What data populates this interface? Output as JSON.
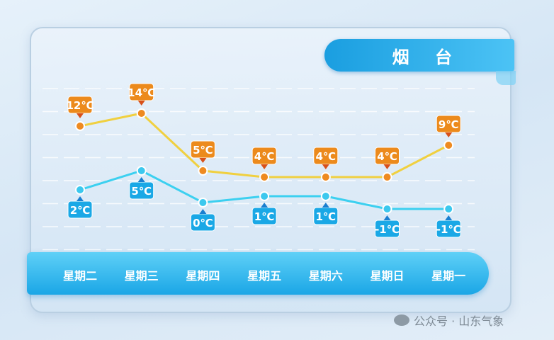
{
  "title": "烟 台",
  "watermark": "公众号 · 山东气象",
  "chart_data": {
    "type": "line",
    "categories": [
      "星期二",
      "星期三",
      "星期四",
      "星期五",
      "星期六",
      "星期日",
      "星期一"
    ],
    "series": [
      {
        "values": [
          12,
          14,
          5,
          4,
          4,
          4,
          9
        ],
        "labels": [
          "12℃",
          "14℃",
          "5℃",
          "4℃",
          "4℃",
          "4℃",
          "9℃"
        ],
        "color": "#f0d040",
        "label_color": "#ec8a1c"
      },
      {
        "values": [
          2,
          5,
          0,
          1,
          1,
          -1,
          -1
        ],
        "labels": [
          "2℃",
          "5℃",
          "0℃",
          "1℃",
          "1℃",
          "-1℃",
          "-1℃"
        ],
        "color": "#3cd0f0",
        "label_color": "#1aa8e6"
      }
    ],
    "grid": true
  }
}
